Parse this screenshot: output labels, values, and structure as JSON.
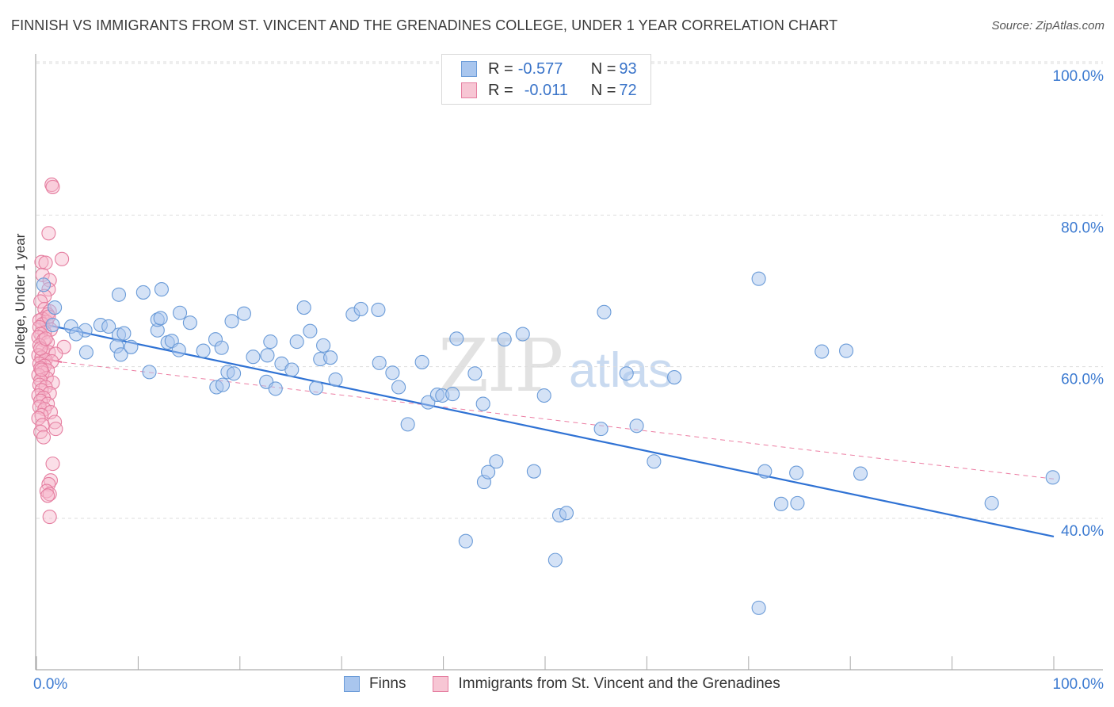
{
  "header": {
    "title": "FINNISH VS IMMIGRANTS FROM ST. VINCENT AND THE GRENADINES COLLEGE, UNDER 1 YEAR CORRELATION CHART",
    "source": "Source: ZipAtlas.com"
  },
  "watermark": {
    "zip": "ZIP",
    "atlas": "atlas"
  },
  "legend": {
    "row1": {
      "r_label": "R = ",
      "r_value": "-0.577",
      "n_label": "N = ",
      "n_value": "93"
    },
    "row2": {
      "r_label": "R = ",
      "r_value": "-0.011",
      "n_label": "N = ",
      "n_value": "72"
    }
  },
  "bottom_legend": {
    "finns": "Finns",
    "immigrants": "Immigrants from St. Vincent and the Grenadines"
  },
  "colors": {
    "blue_fill": "#a9c6ee",
    "blue_stroke": "#6a9bd8",
    "blue_line": "#2f72d4",
    "pink_fill": "#f7b8cb",
    "pink_stroke": "#e57ea0",
    "pink_line": "#e85f8d",
    "axis_text": "#3d7bd1",
    "grid": "#dddddd"
  },
  "chart_data": {
    "type": "scatter",
    "title": "FINNISH VS IMMIGRANTS FROM ST. VINCENT AND THE GRENADINES COLLEGE, UNDER 1 YEAR CORRELATION CHART",
    "xlabel": "",
    "ylabel": "College, Under 1 year",
    "xlim": [
      0,
      100
    ],
    "ylim": [
      20,
      102
    ],
    "x_tick_labels": [
      "0.0%",
      "100.0%"
    ],
    "y_ticks": [
      40,
      60,
      80,
      100
    ],
    "y_tick_labels": [
      "40.0%",
      "60.0%",
      "80.0%",
      "100.0%"
    ],
    "grid": true,
    "series": [
      {
        "name": "Finns",
        "color": "#a9c6ee",
        "trend": {
          "x": [
            0,
            100
          ],
          "y": [
            65.8,
            37.6
          ]
        },
        "points": [
          [
            0.7,
            70.8
          ],
          [
            1.8,
            67.8
          ],
          [
            1.6,
            65.5
          ],
          [
            3.4,
            65.3
          ],
          [
            4.8,
            64.8
          ],
          [
            3.9,
            64.3
          ],
          [
            6.3,
            65.5
          ],
          [
            7.1,
            65.3
          ],
          [
            8.1,
            64.2
          ],
          [
            8.6,
            64.4
          ],
          [
            4.9,
            61.9
          ],
          [
            8.1,
            69.5
          ],
          [
            10.5,
            69.8
          ],
          [
            12.3,
            70.2
          ],
          [
            7.9,
            62.7
          ],
          [
            8.3,
            61.6
          ],
          [
            9.3,
            62.6
          ],
          [
            11.1,
            59.3
          ],
          [
            11.9,
            64.8
          ],
          [
            11.9,
            66.2
          ],
          [
            12.2,
            66.4
          ],
          [
            12.9,
            63.2
          ],
          [
            13.3,
            63.4
          ],
          [
            14.1,
            67.1
          ],
          [
            15.1,
            65.8
          ],
          [
            14.0,
            62.2
          ],
          [
            16.4,
            62.1
          ],
          [
            17.6,
            63.6
          ],
          [
            18.2,
            62.5
          ],
          [
            17.7,
            57.3
          ],
          [
            18.3,
            57.6
          ],
          [
            18.8,
            59.3
          ],
          [
            19.2,
            66.0
          ],
          [
            20.4,
            67.0
          ],
          [
            19.4,
            59.1
          ],
          [
            21.3,
            61.3
          ],
          [
            22.7,
            61.5
          ],
          [
            23.0,
            63.3
          ],
          [
            22.6,
            58.0
          ],
          [
            23.5,
            57.1
          ],
          [
            24.1,
            60.4
          ],
          [
            25.1,
            59.6
          ],
          [
            25.6,
            63.3
          ],
          [
            26.3,
            67.8
          ],
          [
            26.9,
            64.7
          ],
          [
            27.5,
            57.2
          ],
          [
            27.9,
            61.0
          ],
          [
            28.2,
            62.8
          ],
          [
            28.9,
            61.2
          ],
          [
            29.4,
            58.3
          ],
          [
            31.1,
            66.9
          ],
          [
            31.9,
            67.6
          ],
          [
            33.6,
            67.5
          ],
          [
            33.7,
            60.5
          ],
          [
            35.0,
            59.2
          ],
          [
            35.6,
            57.3
          ],
          [
            36.5,
            52.4
          ],
          [
            37.9,
            60.6
          ],
          [
            38.5,
            55.3
          ],
          [
            39.4,
            56.3
          ],
          [
            39.9,
            56.2
          ],
          [
            40.9,
            56.4
          ],
          [
            41.3,
            63.7
          ],
          [
            42.2,
            37.0
          ],
          [
            43.1,
            59.1
          ],
          [
            44.0,
            44.8
          ],
          [
            44.4,
            46.1
          ],
          [
            45.2,
            47.5
          ],
          [
            46.0,
            63.6
          ],
          [
            47.8,
            64.3
          ],
          [
            43.9,
            55.1
          ],
          [
            48.9,
            46.2
          ],
          [
            49.9,
            56.2
          ],
          [
            51.4,
            40.4
          ],
          [
            52.1,
            40.7
          ],
          [
            51.0,
            34.5
          ],
          [
            55.5,
            51.8
          ],
          [
            55.8,
            67.2
          ],
          [
            58.0,
            59.1
          ],
          [
            59.0,
            52.2
          ],
          [
            60.7,
            47.5
          ],
          [
            62.7,
            58.6
          ],
          [
            71.0,
            71.6
          ],
          [
            71.6,
            46.2
          ],
          [
            73.2,
            41.9
          ],
          [
            71.0,
            28.2
          ],
          [
            74.7,
            46.0
          ],
          [
            74.8,
            42.0
          ],
          [
            77.2,
            62.0
          ],
          [
            79.6,
            62.1
          ],
          [
            81.0,
            45.9
          ],
          [
            93.9,
            42.0
          ],
          [
            99.9,
            45.4
          ]
        ]
      },
      {
        "name": "Immigrants from St. Vincent and the Grenadines",
        "color": "#f7b8cb",
        "trend": {
          "x": [
            0,
            100
          ],
          "y": [
            61.0,
            45.2
          ]
        },
        "points": [
          [
            1.5,
            84.0
          ],
          [
            1.6,
            83.7
          ],
          [
            1.2,
            77.6
          ],
          [
            2.5,
            74.2
          ],
          [
            0.5,
            73.8
          ],
          [
            0.9,
            73.7
          ],
          [
            0.6,
            72.1
          ],
          [
            1.3,
            71.4
          ],
          [
            1.2,
            70.2
          ],
          [
            0.8,
            69.3
          ],
          [
            0.4,
            68.6
          ],
          [
            0.8,
            67.6
          ],
          [
            1.3,
            67.3
          ],
          [
            1.1,
            66.9
          ],
          [
            0.6,
            66.3
          ],
          [
            0.3,
            66.1
          ],
          [
            1.0,
            65.9
          ],
          [
            0.6,
            65.6
          ],
          [
            0.3,
            65.2
          ],
          [
            1.4,
            64.9
          ],
          [
            0.8,
            64.5
          ],
          [
            0.4,
            64.3
          ],
          [
            0.2,
            63.9
          ],
          [
            0.7,
            63.5
          ],
          [
            1.1,
            63.2
          ],
          [
            0.3,
            62.8
          ],
          [
            2.7,
            62.6
          ],
          [
            0.6,
            62.2
          ],
          [
            1.2,
            61.9
          ],
          [
            1.9,
            61.7
          ],
          [
            0.2,
            61.5
          ],
          [
            0.5,
            61.2
          ],
          [
            0.9,
            60.9
          ],
          [
            1.5,
            60.7
          ],
          [
            0.3,
            60.4
          ],
          [
            0.8,
            60.1
          ],
          [
            0.4,
            59.8
          ],
          [
            1.1,
            59.5
          ],
          [
            0.6,
            59.2
          ],
          [
            0.2,
            58.9
          ],
          [
            1.0,
            58.5
          ],
          [
            0.4,
            58.2
          ],
          [
            1.6,
            57.9
          ],
          [
            0.3,
            57.6
          ],
          [
            0.9,
            57.3
          ],
          [
            0.5,
            56.9
          ],
          [
            1.3,
            56.5
          ],
          [
            0.2,
            56.2
          ],
          [
            0.7,
            55.9
          ],
          [
            0.4,
            55.5
          ],
          [
            1.1,
            55.1
          ],
          [
            0.3,
            54.7
          ],
          [
            0.8,
            54.4
          ],
          [
            1.4,
            54.0
          ],
          [
            0.5,
            53.6
          ],
          [
            0.2,
            53.2
          ],
          [
            1.8,
            52.7
          ],
          [
            0.6,
            52.3
          ],
          [
            1.9,
            51.8
          ],
          [
            0.4,
            51.4
          ],
          [
            0.7,
            50.7
          ],
          [
            1.6,
            47.2
          ],
          [
            1.4,
            45.0
          ],
          [
            1.2,
            44.5
          ],
          [
            1.0,
            43.6
          ],
          [
            1.3,
            43.2
          ],
          [
            1.1,
            43.0
          ],
          [
            1.3,
            40.2
          ],
          [
            0.4,
            62.4
          ],
          [
            0.9,
            63.7
          ],
          [
            0.5,
            59.6
          ],
          [
            1.2,
            66.6
          ]
        ]
      }
    ]
  }
}
